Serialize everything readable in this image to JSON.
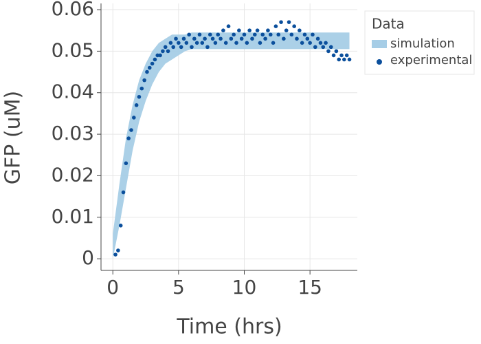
{
  "chart_data": {
    "type": "scatter",
    "x_label": "Time (hrs)",
    "y_label": "GFP (uM)",
    "xlim": [
      -0.9,
      18.6
    ],
    "ylim": [
      -0.0028,
      0.0615
    ],
    "xticks": [
      0,
      5,
      10,
      15
    ],
    "yticks": [
      0,
      0.01,
      0.02,
      0.03,
      0.04,
      0.05,
      0.06
    ],
    "grid": true,
    "legend_title": "Data",
    "legend_position": "outside-right",
    "series": [
      {
        "name": "simulation",
        "type": "band",
        "color": "#a6cde6",
        "x": [
          0,
          0.5,
          1,
          1.5,
          2,
          2.5,
          3,
          3.5,
          4,
          4.5,
          5,
          5.5,
          6,
          6.5,
          7,
          7.5,
          8,
          8.5,
          9,
          9.5,
          10,
          10.5,
          11,
          11.5,
          12,
          12.5,
          13,
          13.5,
          14,
          14.5,
          15,
          15.5,
          16,
          16.5,
          17,
          17.5,
          18
        ],
        "lower": [
          0,
          0.008,
          0.017,
          0.026,
          0.033,
          0.038,
          0.042,
          0.045,
          0.047,
          0.048,
          0.049,
          0.05,
          0.0505,
          0.0505,
          0.0505,
          0.0505,
          0.0505,
          0.0505,
          0.0505,
          0.0505,
          0.0505,
          0.0505,
          0.0505,
          0.0505,
          0.0505,
          0.0505,
          0.0505,
          0.0505,
          0.0505,
          0.0505,
          0.0505,
          0.0505,
          0.0505,
          0.0505,
          0.0505,
          0.0505,
          0.0505
        ],
        "upper": [
          0.006,
          0.018,
          0.029,
          0.037,
          0.043,
          0.047,
          0.05,
          0.052,
          0.053,
          0.054,
          0.054,
          0.054,
          0.0545,
          0.0545,
          0.0545,
          0.0545,
          0.0545,
          0.0545,
          0.0545,
          0.0545,
          0.0545,
          0.0545,
          0.0545,
          0.0545,
          0.0545,
          0.0545,
          0.0545,
          0.0545,
          0.0545,
          0.0545,
          0.0545,
          0.0545,
          0.0545,
          0.0545,
          0.0545,
          0.0545,
          0.0545
        ]
      },
      {
        "name": "experimental",
        "type": "points",
        "color": "#0b4f9c",
        "x": [
          0.2,
          0.4,
          0.6,
          0.8,
          1,
          1.2,
          1.4,
          1.6,
          1.8,
          2,
          2.2,
          2.4,
          2.6,
          2.8,
          3,
          3.2,
          3.4,
          3.6,
          3.8,
          4,
          4.2,
          4.4,
          4.6,
          4.8,
          5,
          5.2,
          5.4,
          5.6,
          5.8,
          6,
          6.2,
          6.4,
          6.6,
          6.8,
          7,
          7.2,
          7.4,
          7.6,
          7.8,
          8,
          8.2,
          8.4,
          8.6,
          8.8,
          9,
          9.2,
          9.4,
          9.6,
          9.8,
          10,
          10.2,
          10.4,
          10.6,
          10.8,
          11,
          11.2,
          11.4,
          11.6,
          11.8,
          12,
          12.2,
          12.4,
          12.6,
          12.8,
          13,
          13.2,
          13.4,
          13.6,
          13.8,
          14,
          14.2,
          14.4,
          14.6,
          14.8,
          15,
          15.2,
          15.4,
          15.6,
          15.8,
          16,
          16.2,
          16.4,
          16.6,
          16.8,
          17,
          17.2,
          17.4,
          17.6,
          17.8,
          18
        ],
        "values": [
          0.001,
          0.002,
          0.008,
          0.016,
          0.023,
          0.029,
          0.031,
          0.034,
          0.037,
          0.039,
          0.041,
          0.043,
          0.045,
          0.046,
          0.047,
          0.048,
          0.049,
          0.049,
          0.05,
          0.051,
          0.05,
          0.052,
          0.051,
          0.053,
          0.052,
          0.051,
          0.053,
          0.052,
          0.054,
          0.051,
          0.053,
          0.052,
          0.054,
          0.052,
          0.053,
          0.051,
          0.054,
          0.053,
          0.052,
          0.054,
          0.053,
          0.055,
          0.052,
          0.056,
          0.053,
          0.054,
          0.052,
          0.055,
          0.053,
          0.054,
          0.052,
          0.055,
          0.053,
          0.054,
          0.055,
          0.052,
          0.054,
          0.053,
          0.055,
          0.054,
          0.052,
          0.056,
          0.054,
          0.057,
          0.053,
          0.055,
          0.057,
          0.054,
          0.056,
          0.053,
          0.055,
          0.052,
          0.054,
          0.053,
          0.052,
          0.054,
          0.051,
          0.053,
          0.052,
          0.051,
          0.052,
          0.05,
          0.051,
          0.049,
          0.05,
          0.048,
          0.049,
          0.048,
          0.049,
          0.048
        ]
      }
    ]
  }
}
